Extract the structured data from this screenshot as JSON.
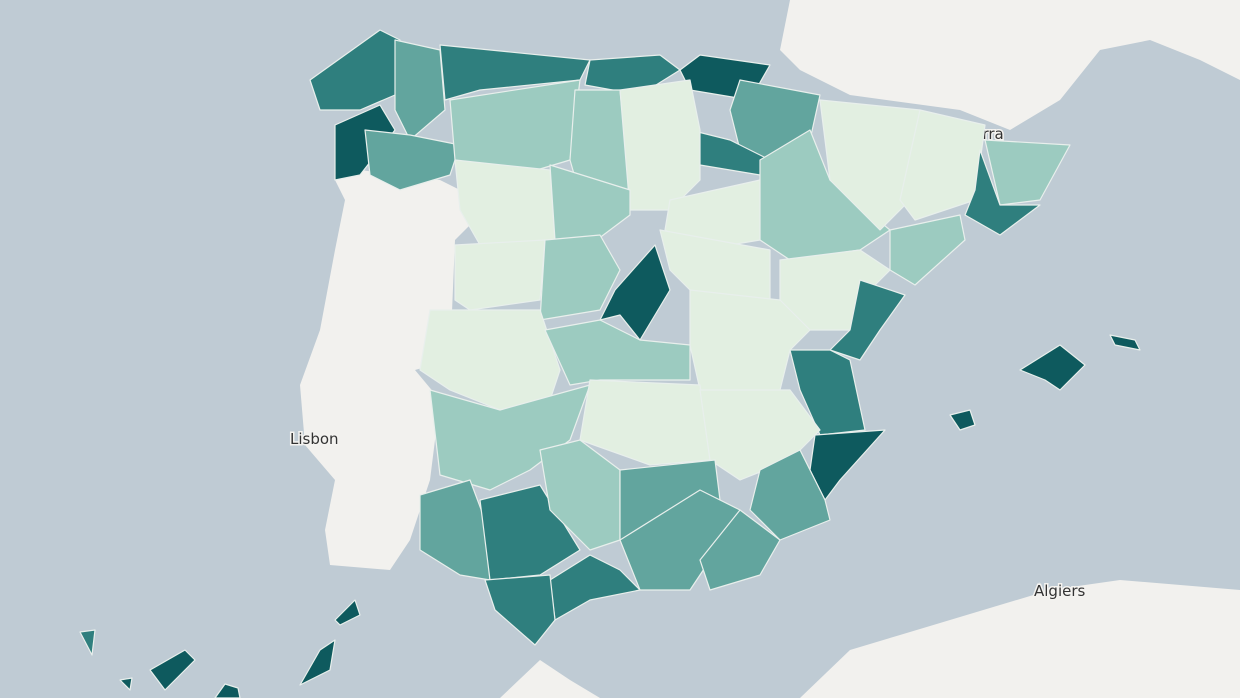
{
  "labels": {
    "lisbon": "Lisbon",
    "algiers": "Algiers",
    "andorra": "Andorra"
  }
}
